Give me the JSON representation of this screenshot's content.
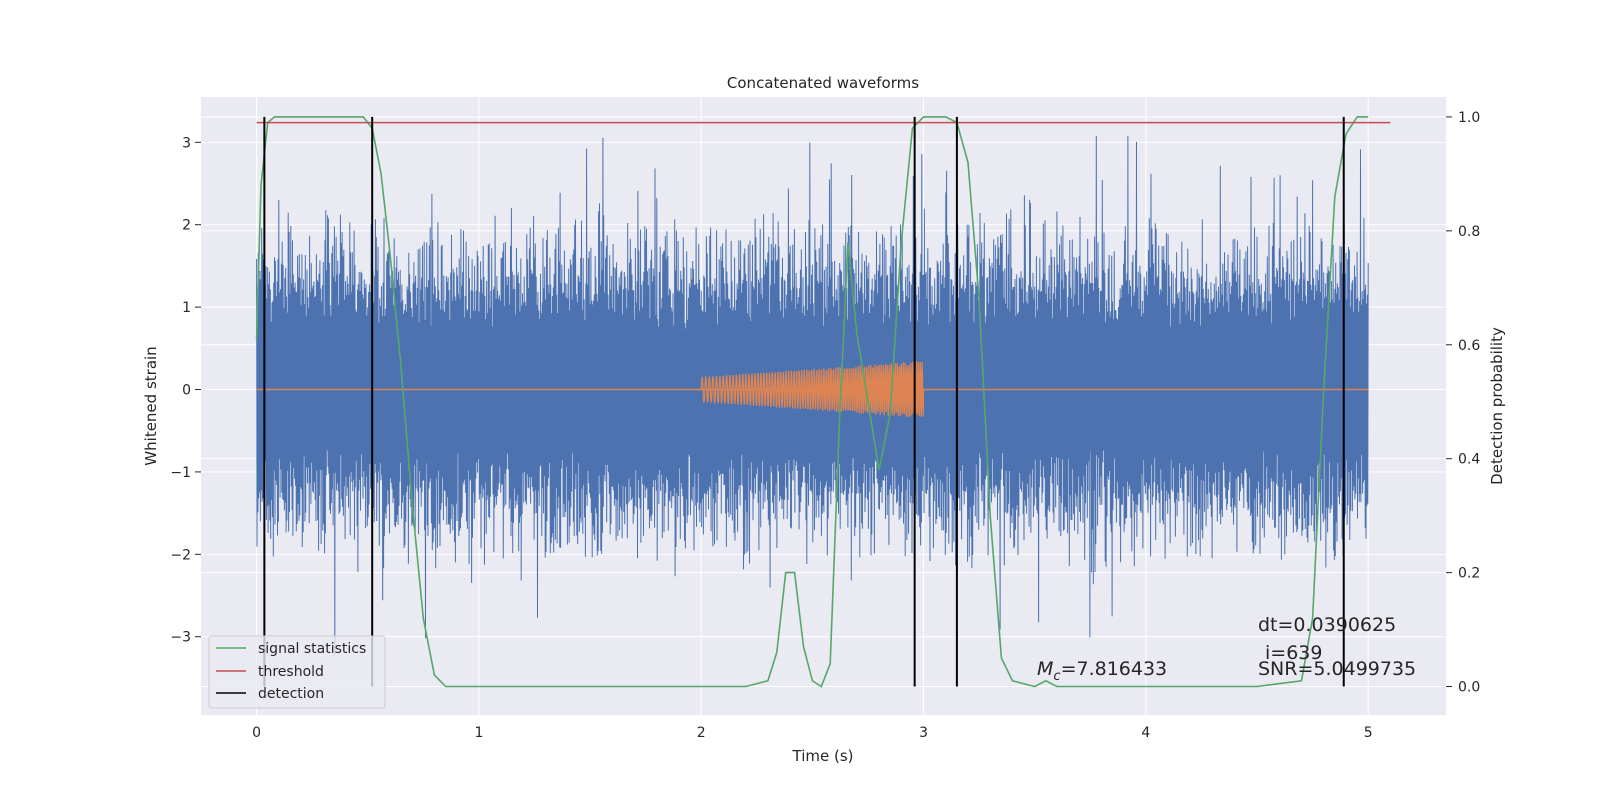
{
  "chart_data": {
    "type": "line",
    "title": "Concatenated waveforms",
    "xlabel": "Time (s)",
    "ylabel": "Whitened strain",
    "ylabel_right": "Detection probability",
    "xlim": [
      -0.25,
      5.35
    ],
    "ylim": [
      -3.95,
      3.55
    ],
    "ylim_right": [
      -0.05,
      1.035
    ],
    "x_ticks": [
      0,
      1,
      2,
      3,
      4,
      5
    ],
    "y_ticks": [
      -3,
      -2,
      -1,
      0,
      1,
      2,
      3
    ],
    "y_ticks_right": [
      0.0,
      0.2,
      0.4,
      0.6,
      0.8,
      1.0
    ],
    "x_tick_labels": [
      "0",
      "1",
      "2",
      "3",
      "4",
      "5"
    ],
    "y_tick_labels": [
      "−3",
      "−2",
      "−1",
      "0",
      "1",
      "2",
      "3"
    ],
    "y_tick_labels_right": [
      "0.0",
      "0.2",
      "0.4",
      "0.6",
      "0.8",
      "1.0"
    ],
    "grid": true,
    "background": "#eaeaf2",
    "strain": {
      "x_range": [
        0,
        5
      ],
      "typical_abs_max": 2.2,
      "peak_abs_max": 3.3,
      "color": "#4c72b0"
    },
    "template": {
      "x_range": [
        2,
        3
      ],
      "amplitude_start": 0.15,
      "amplitude_end": 0.35,
      "color": "#dd8452"
    },
    "zero_line": {
      "y": 0,
      "color": "#dd8452"
    },
    "signal_statistics": {
      "name": "signal statistics",
      "color": "#55a868",
      "axis": "right",
      "x": [
        0.0,
        0.02,
        0.05,
        0.08,
        0.12,
        0.3,
        0.48,
        0.52,
        0.56,
        0.6,
        0.65,
        0.7,
        0.75,
        0.8,
        0.85,
        0.9,
        1.0,
        1.5,
        2.0,
        2.2,
        2.3,
        2.34,
        2.38,
        2.42,
        2.46,
        2.5,
        2.54,
        2.58,
        2.62,
        2.66,
        2.7,
        2.75,
        2.8,
        2.85,
        2.9,
        2.95,
        3.0,
        3.1,
        3.15,
        3.2,
        3.25,
        3.3,
        3.35,
        3.4,
        3.5,
        3.55,
        3.6,
        4.0,
        4.5,
        4.7,
        4.75,
        4.8,
        4.85,
        4.9,
        4.95,
        5.0
      ],
      "values": [
        0.61,
        0.88,
        0.99,
        1.0,
        1.0,
        1.0,
        1.0,
        0.98,
        0.9,
        0.76,
        0.56,
        0.32,
        0.12,
        0.02,
        0.0,
        0.0,
        0.0,
        0.0,
        0.0,
        0.0,
        0.01,
        0.06,
        0.2,
        0.2,
        0.07,
        0.01,
        0.0,
        0.04,
        0.45,
        0.78,
        0.62,
        0.5,
        0.38,
        0.48,
        0.78,
        0.98,
        1.0,
        1.0,
        0.99,
        0.92,
        0.68,
        0.3,
        0.05,
        0.01,
        0.0,
        0.01,
        0.0,
        0.0,
        0.0,
        0.01,
        0.12,
        0.52,
        0.86,
        0.97,
        1.0,
        1.0
      ]
    },
    "threshold": {
      "name": "threshold",
      "color": "#c44e52",
      "axis": "right",
      "x": [
        0,
        5.1
      ],
      "value": 0.99
    },
    "detection": {
      "name": "detection",
      "color": "#000000",
      "x": [
        0.035,
        0.52,
        2.96,
        3.15,
        4.89
      ]
    },
    "annotations": {
      "mc_symbol": "M",
      "mc_subscript": "c",
      "mc_value": "=7.816433",
      "dt": "dt=0.0390625",
      "i": "i=639",
      "snr": "SNR=5.0499735"
    },
    "legend": {
      "placement": "lower-left",
      "entries": [
        "signal statistics",
        "threshold",
        "detection"
      ]
    }
  }
}
